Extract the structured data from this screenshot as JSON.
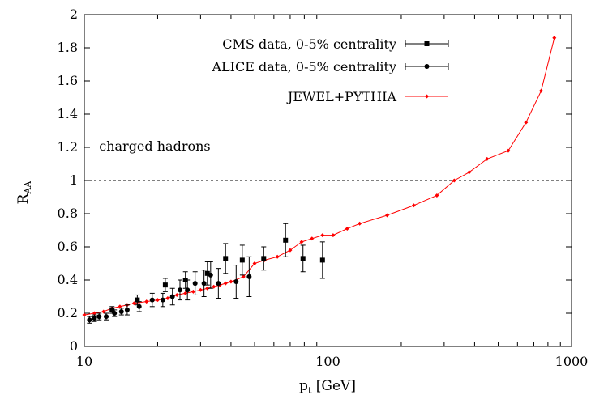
{
  "chart_data": {
    "type": "scatter",
    "title": "",
    "xlabel": "p",
    "xlabel_sub": "t",
    "xlabel_unit": " [GeV]",
    "ylabel": "R",
    "ylabel_sub": "AA",
    "xscale": "log",
    "xlim": [
      10,
      1000
    ],
    "ylim": [
      0,
      2
    ],
    "x_ticks": [
      10,
      100,
      1000
    ],
    "x_tick_labels": [
      "10",
      "100",
      "1000"
    ],
    "y_ticks": [
      0,
      0.2,
      0.4,
      0.6,
      0.8,
      1,
      1.2,
      1.4,
      1.6,
      1.8,
      2
    ],
    "y_tick_labels": [
      "0",
      "0.2",
      "0.4",
      "0.6",
      "0.8",
      "1",
      "1.2",
      "1.4",
      "1.6",
      "1.8",
      "2"
    ],
    "grid": false,
    "legend_position": "top-right",
    "reference_line": {
      "y": 1,
      "style": "dashed"
    },
    "annotations": [
      {
        "text": "charged hadrons",
        "x": 11.5,
        "y": 1.18
      }
    ],
    "colors": {
      "cms": "#000000",
      "alice": "#000000",
      "jewel": "#ff0000"
    },
    "series": [
      {
        "name": "CMS data, 0-5% centrality",
        "marker": "square",
        "points": [
          {
            "x": 13.0,
            "y": 0.22,
            "err": 0.02
          },
          {
            "x": 16.5,
            "y": 0.28,
            "err": 0.03
          },
          {
            "x": 21.5,
            "y": 0.37,
            "err": 0.04
          },
          {
            "x": 26.0,
            "y": 0.4,
            "err": 0.05
          },
          {
            "x": 32.0,
            "y": 0.44,
            "err": 0.07
          },
          {
            "x": 38.0,
            "y": 0.53,
            "err": 0.09
          },
          {
            "x": 44.5,
            "y": 0.52,
            "err": 0.09
          },
          {
            "x": 54.5,
            "y": 0.53,
            "err": 0.07
          },
          {
            "x": 67.0,
            "y": 0.64,
            "err": 0.1
          },
          {
            "x": 79.0,
            "y": 0.53,
            "err": 0.08
          },
          {
            "x": 95.0,
            "y": 0.52,
            "err": 0.11
          }
        ]
      },
      {
        "name": "ALICE data, 0-5% centrality",
        "marker": "circle",
        "points": [
          {
            "x": 10.5,
            "y": 0.16,
            "err": 0.02
          },
          {
            "x": 11.0,
            "y": 0.17,
            "err": 0.02
          },
          {
            "x": 11.5,
            "y": 0.18,
            "err": 0.02
          },
          {
            "x": 12.3,
            "y": 0.18,
            "err": 0.02
          },
          {
            "x": 13.3,
            "y": 0.2,
            "err": 0.02
          },
          {
            "x": 14.2,
            "y": 0.21,
            "err": 0.02
          },
          {
            "x": 15.0,
            "y": 0.22,
            "err": 0.03
          },
          {
            "x": 16.8,
            "y": 0.24,
            "err": 0.03
          },
          {
            "x": 19.0,
            "y": 0.28,
            "err": 0.04
          },
          {
            "x": 21.0,
            "y": 0.28,
            "err": 0.04
          },
          {
            "x": 23.0,
            "y": 0.3,
            "err": 0.05
          },
          {
            "x": 24.7,
            "y": 0.34,
            "err": 0.06
          },
          {
            "x": 26.5,
            "y": 0.34,
            "err": 0.06
          },
          {
            "x": 28.5,
            "y": 0.38,
            "err": 0.07
          },
          {
            "x": 31.0,
            "y": 0.38,
            "err": 0.08
          },
          {
            "x": 33.0,
            "y": 0.43,
            "err": 0.08
          },
          {
            "x": 35.5,
            "y": 0.38,
            "err": 0.09
          },
          {
            "x": 42.0,
            "y": 0.39,
            "err": 0.1
          },
          {
            "x": 47.5,
            "y": 0.42,
            "err": 0.12
          }
        ]
      },
      {
        "name": "JEWEL+PYTHIA",
        "marker": "diamond",
        "line": true,
        "points": [
          {
            "x": 10.0,
            "y": 0.19
          },
          {
            "x": 11.0,
            "y": 0.2
          },
          {
            "x": 12.0,
            "y": 0.21
          },
          {
            "x": 13.0,
            "y": 0.23
          },
          {
            "x": 14.0,
            "y": 0.24
          },
          {
            "x": 15.0,
            "y": 0.25
          },
          {
            "x": 16.0,
            "y": 0.26
          },
          {
            "x": 18.0,
            "y": 0.27
          },
          {
            "x": 20.0,
            "y": 0.28
          },
          {
            "x": 22.0,
            "y": 0.29
          },
          {
            "x": 24.0,
            "y": 0.31
          },
          {
            "x": 26.0,
            "y": 0.32
          },
          {
            "x": 28.0,
            "y": 0.33
          },
          {
            "x": 30.0,
            "y": 0.34
          },
          {
            "x": 32.0,
            "y": 0.35
          },
          {
            "x": 34.0,
            "y": 0.36
          },
          {
            "x": 36.0,
            "y": 0.37
          },
          {
            "x": 38.0,
            "y": 0.38
          },
          {
            "x": 40.0,
            "y": 0.39
          },
          {
            "x": 45.0,
            "y": 0.42
          },
          {
            "x": 50.0,
            "y": 0.5
          },
          {
            "x": 55.0,
            "y": 0.52
          },
          {
            "x": 62.0,
            "y": 0.54
          },
          {
            "x": 70.0,
            "y": 0.58
          },
          {
            "x": 78.0,
            "y": 0.63
          },
          {
            "x": 86.0,
            "y": 0.65
          },
          {
            "x": 95.0,
            "y": 0.67
          },
          {
            "x": 105.0,
            "y": 0.67
          },
          {
            "x": 120.0,
            "y": 0.71
          },
          {
            "x": 135.0,
            "y": 0.74
          },
          {
            "x": 175.0,
            "y": 0.79
          },
          {
            "x": 225.0,
            "y": 0.85
          },
          {
            "x": 280.0,
            "y": 0.91
          },
          {
            "x": 330.0,
            "y": 1.0
          },
          {
            "x": 380.0,
            "y": 1.05
          },
          {
            "x": 450.0,
            "y": 1.13
          },
          {
            "x": 550.0,
            "y": 1.18
          },
          {
            "x": 650.0,
            "y": 1.35
          },
          {
            "x": 750.0,
            "y": 1.54
          },
          {
            "x": 850.0,
            "y": 1.86
          }
        ]
      }
    ]
  }
}
